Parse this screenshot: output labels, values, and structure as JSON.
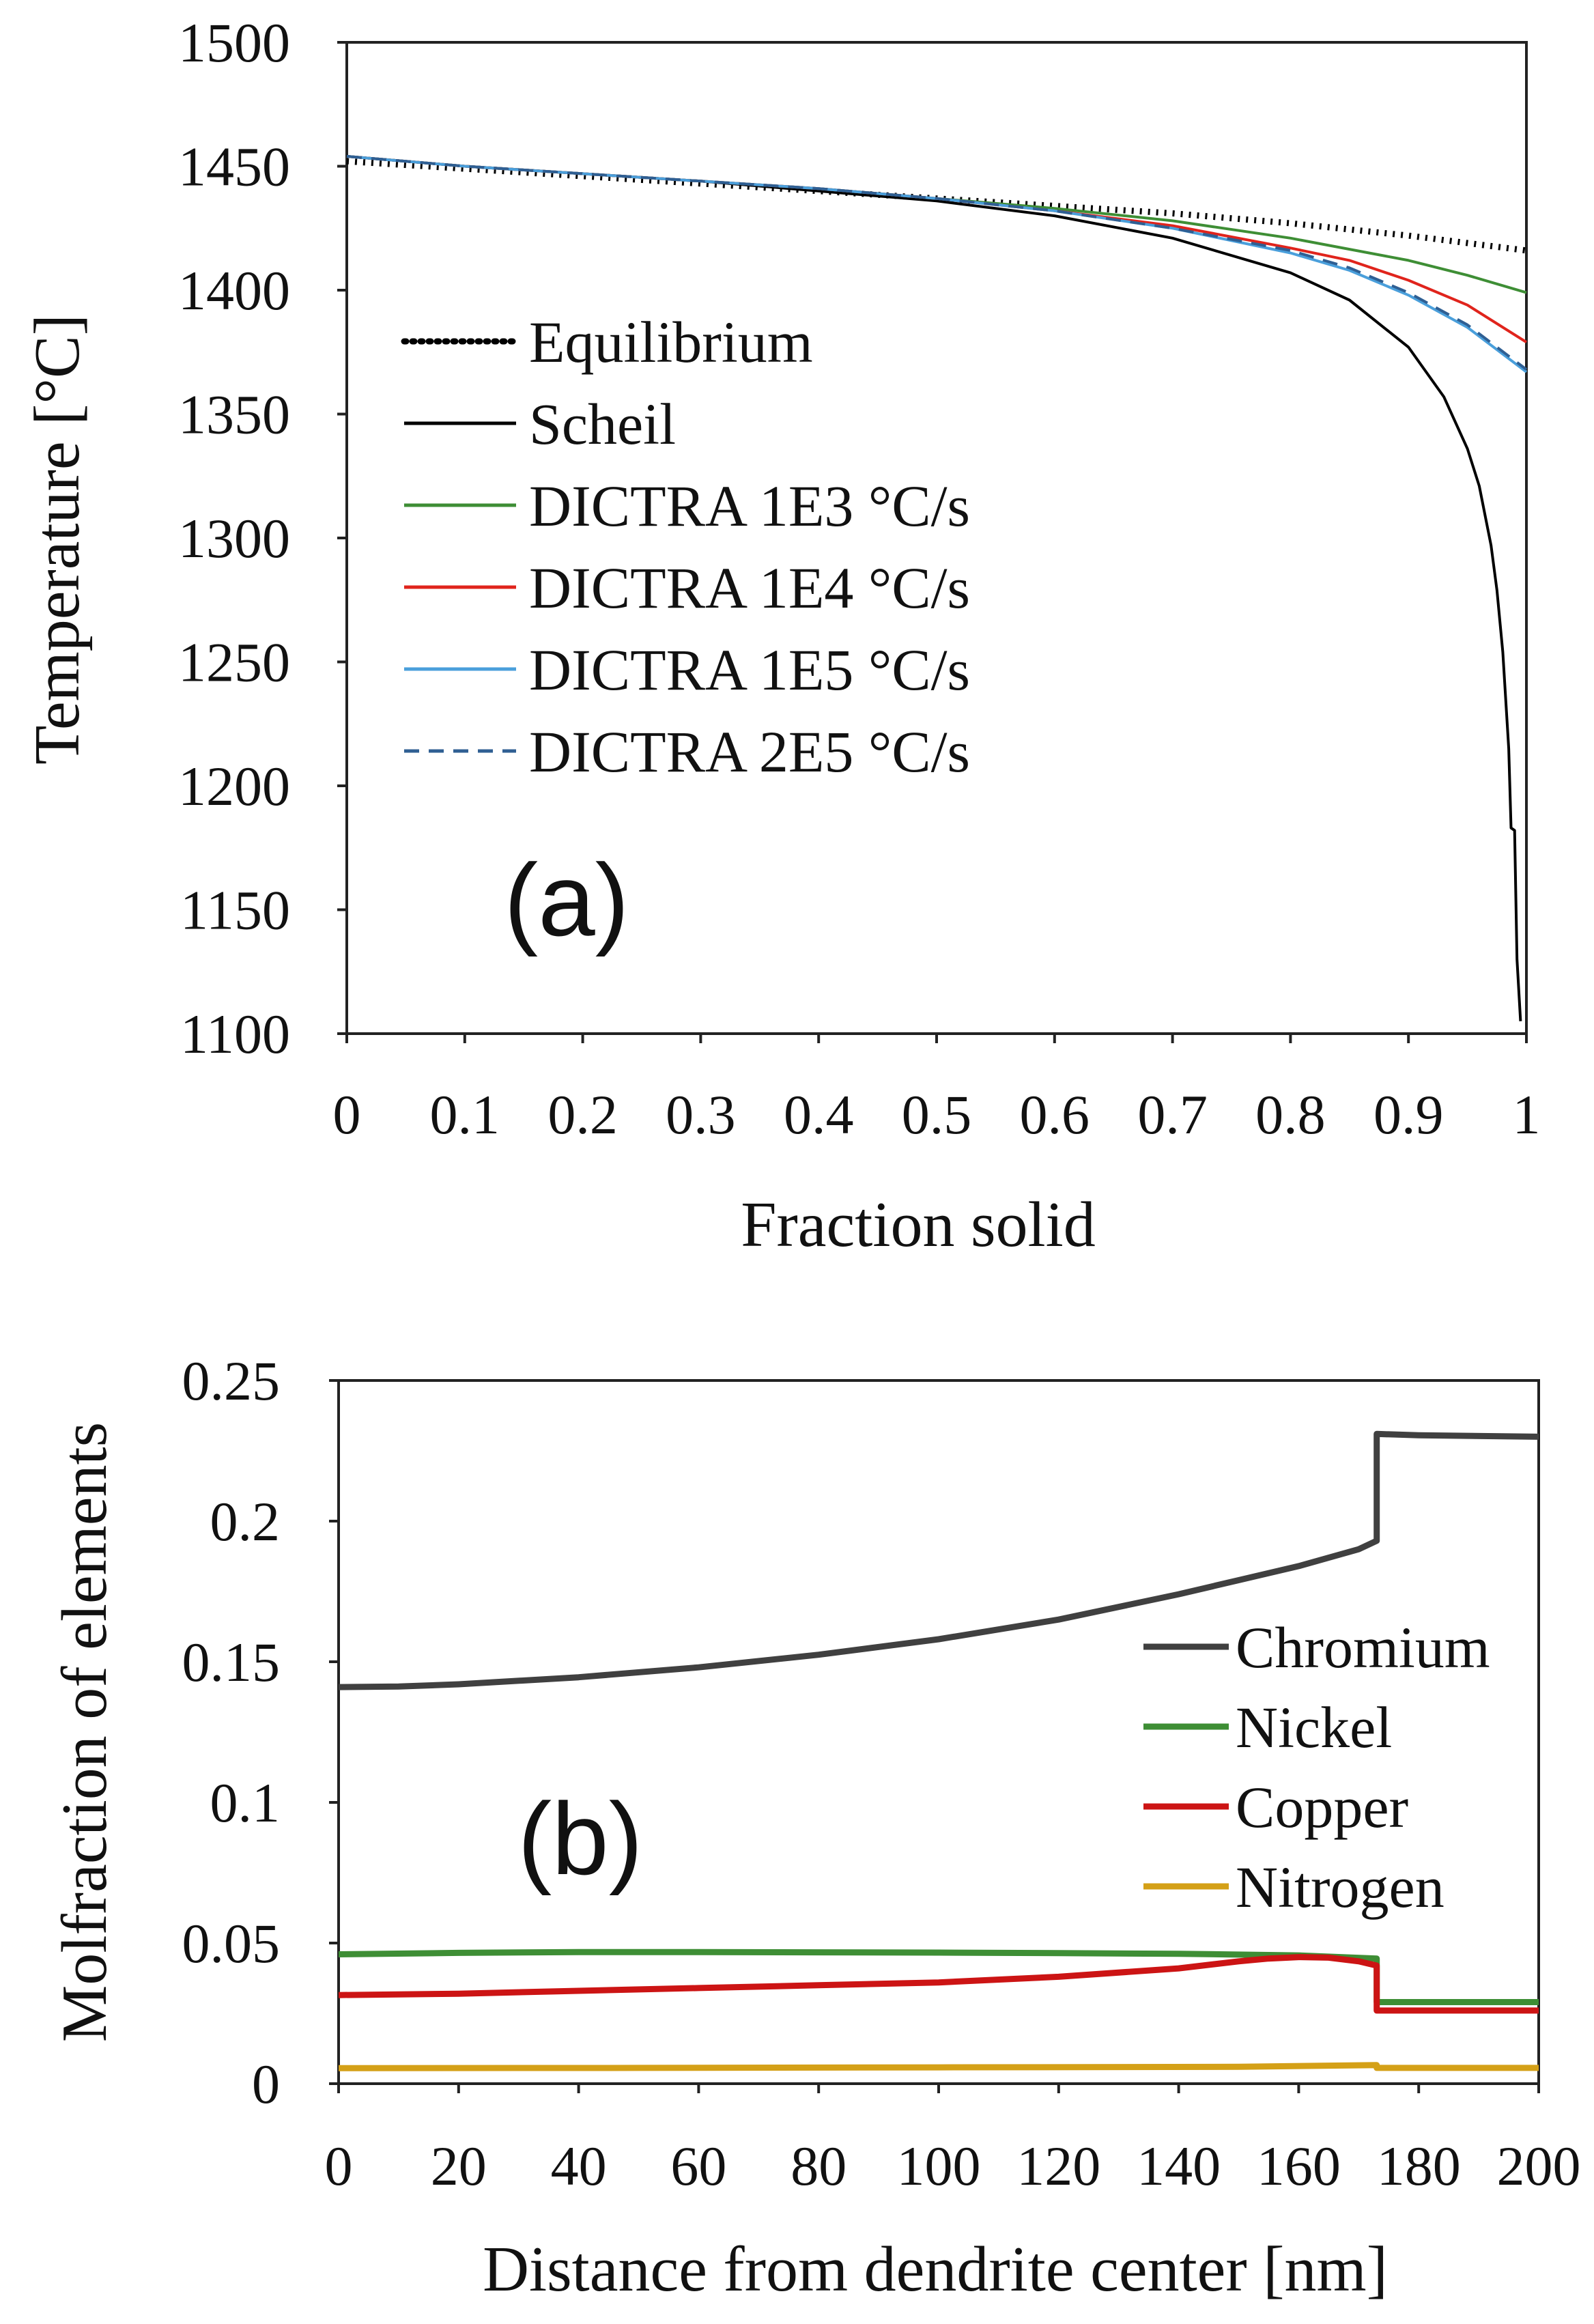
{
  "chart_data": [
    {
      "type": "line",
      "panel_label": "(a)",
      "title": "",
      "xlabel": "Fraction solid",
      "ylabel": "Temperature [°C]",
      "xlim": [
        0,
        1
      ],
      "ylim": [
        1100,
        1500
      ],
      "x_ticks": [
        "0",
        "0.1",
        "0.2",
        "0.3",
        "0.4",
        "0.5",
        "0.6",
        "0.7",
        "0.8",
        "0.9",
        "1"
      ],
      "y_ticks": [
        "1500",
        "1450",
        "1400",
        "1350",
        "1300",
        "1250",
        "1200",
        "1150",
        "1100"
      ],
      "grid": false,
      "legend_position": "left-middle",
      "series": [
        {
          "name": "Equilibrium",
          "color": "#000000",
          "style": "dotted",
          "x": [
            0,
            0.1,
            0.2,
            0.3,
            0.4,
            0.5,
            0.6,
            0.7,
            0.8,
            0.9,
            0.95,
            1.0
          ],
          "y": [
            1452,
            1449,
            1446,
            1443,
            1440,
            1437,
            1434,
            1431,
            1427,
            1422,
            1419,
            1416
          ]
        },
        {
          "name": "Scheil",
          "color": "#000000",
          "style": "solid",
          "x": [
            0,
            0.1,
            0.2,
            0.3,
            0.4,
            0.5,
            0.6,
            0.7,
            0.8,
            0.85,
            0.9,
            0.93,
            0.95,
            0.96,
            0.97,
            0.975,
            0.98,
            0.985,
            0.987,
            0.99,
            0.992,
            0.995
          ],
          "y": [
            1454,
            1450,
            1447,
            1444,
            1440,
            1436,
            1430,
            1421,
            1407,
            1396,
            1377,
            1357,
            1336,
            1321,
            1297,
            1279,
            1254,
            1215,
            1183,
            1182,
            1130,
            1105
          ]
        },
        {
          "name": "DICTRA 1E3 °C/s",
          "color": "#3e8e35",
          "style": "solid",
          "x": [
            0,
            0.1,
            0.2,
            0.3,
            0.4,
            0.5,
            0.6,
            0.7,
            0.8,
            0.9,
            0.95,
            1.0
          ],
          "y": [
            1454,
            1450,
            1447,
            1444,
            1441,
            1437,
            1433,
            1428,
            1421,
            1412,
            1406,
            1399
          ]
        },
        {
          "name": "DICTRA 1E4 °C/s",
          "color": "#e0241c",
          "style": "solid",
          "x": [
            0,
            0.1,
            0.2,
            0.3,
            0.4,
            0.5,
            0.6,
            0.7,
            0.8,
            0.85,
            0.9,
            0.95,
            1.0
          ],
          "y": [
            1454,
            1450,
            1447,
            1444,
            1441,
            1437,
            1432,
            1426,
            1417,
            1412,
            1404,
            1394,
            1379
          ]
        },
        {
          "name": "DICTRA 1E5 °C/s",
          "color": "#4a9fdb",
          "style": "solid",
          "x": [
            0,
            0.1,
            0.2,
            0.3,
            0.4,
            0.5,
            0.6,
            0.7,
            0.8,
            0.85,
            0.9,
            0.95,
            1.0
          ],
          "y": [
            1454,
            1450,
            1447,
            1444,
            1441,
            1437,
            1432,
            1425,
            1415,
            1408,
            1398,
            1385,
            1367
          ]
        },
        {
          "name": "DICTRA 2E5 °C/s",
          "color": "#2f5f93",
          "style": "dashed",
          "x": [
            0,
            0.1,
            0.2,
            0.3,
            0.4,
            0.5,
            0.6,
            0.7,
            0.8,
            0.85,
            0.9,
            0.95,
            1.0
          ],
          "y": [
            1454,
            1450,
            1447,
            1444,
            1441,
            1437,
            1432,
            1425,
            1416,
            1409,
            1399,
            1386,
            1368
          ]
        }
      ]
    },
    {
      "type": "line",
      "panel_label": "(b)",
      "title": "",
      "xlabel": "Distance from dendrite center [nm]",
      "ylabel": "Molfraction of elements",
      "xlim": [
        0,
        200
      ],
      "ylim": [
        0,
        0.25
      ],
      "x_ticks": [
        "0",
        "20",
        "40",
        "60",
        "80",
        "100",
        "120",
        "140",
        "160",
        "180",
        "200"
      ],
      "y_ticks": [
        "0.25",
        "0.2",
        "0.15",
        "0.1",
        "0.05",
        "0"
      ],
      "grid": false,
      "legend_position": "right-middle",
      "series": [
        {
          "name": "Chromium",
          "color": "#404040",
          "style": "solid",
          "x": [
            0,
            10,
            20,
            40,
            60,
            80,
            100,
            120,
            140,
            150,
            160,
            170,
            173,
            173,
            180,
            200
          ],
          "y": [
            0.141,
            0.1412,
            0.142,
            0.1445,
            0.148,
            0.1525,
            0.158,
            0.165,
            0.174,
            0.179,
            0.184,
            0.19,
            0.193,
            0.231,
            0.2305,
            0.23
          ]
        },
        {
          "name": "Nickel",
          "color": "#3e8e35",
          "style": "solid",
          "x": [
            0,
            20,
            40,
            60,
            80,
            100,
            120,
            140,
            160,
            173,
            173,
            180,
            200
          ],
          "y": [
            0.046,
            0.0465,
            0.0468,
            0.0468,
            0.0467,
            0.0466,
            0.0464,
            0.0462,
            0.0456,
            0.0445,
            0.029,
            0.029,
            0.029
          ]
        },
        {
          "name": "Copper",
          "color": "#cc1414",
          "style": "solid",
          "x": [
            0,
            20,
            40,
            60,
            80,
            100,
            120,
            140,
            150,
            155,
            160,
            165,
            170,
            173,
            173,
            180,
            200
          ],
          "y": [
            0.0315,
            0.032,
            0.033,
            0.034,
            0.035,
            0.036,
            0.038,
            0.041,
            0.0435,
            0.0445,
            0.045,
            0.0448,
            0.0435,
            0.042,
            0.026,
            0.026,
            0.026
          ]
        },
        {
          "name": "Nitrogen",
          "color": "#d4a017",
          "style": "solid",
          "x": [
            0,
            50,
            100,
            150,
            173,
            173,
            200
          ],
          "y": [
            0.0055,
            0.0056,
            0.0058,
            0.006,
            0.0066,
            0.0056,
            0.0056
          ]
        }
      ]
    }
  ]
}
